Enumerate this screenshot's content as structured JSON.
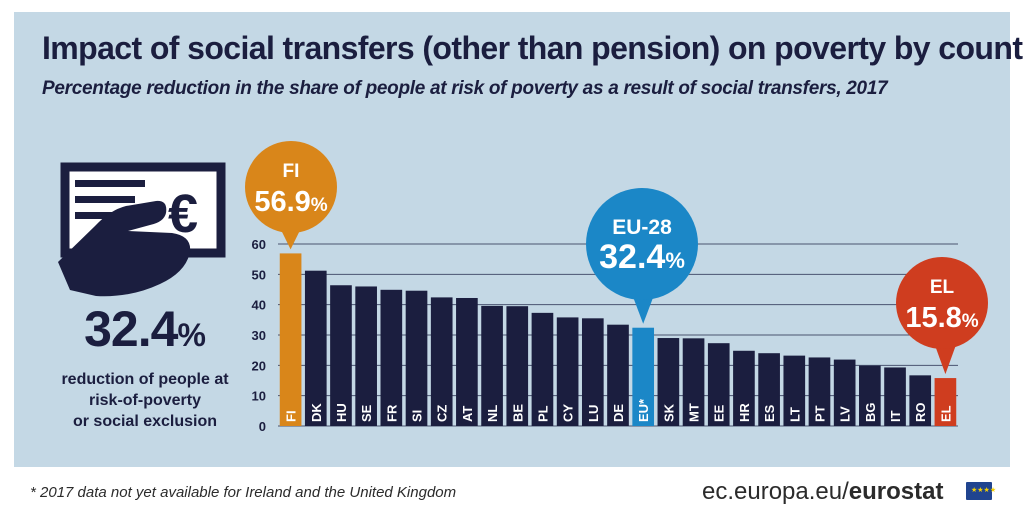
{
  "title": "Impact of social transfers (other than pension) on poverty by country",
  "subtitle": "Percentage reduction in the share of people at risk of poverty as a result of social transfers, 2017",
  "headline": {
    "value": "32.4",
    "unit": "%",
    "label_lines": [
      "reduction of people at",
      "risk-of-poverty",
      "or social exclusion"
    ]
  },
  "callouts": [
    {
      "name": "FI",
      "value": "56.9",
      "unit": "%",
      "color": "#d9861a"
    },
    {
      "name": "EU-28",
      "value": "32.4",
      "unit": "%",
      "color": "#1b87c7"
    },
    {
      "name": "EL",
      "value": "15.8",
      "unit": "%",
      "color": "#cf3d1f"
    }
  ],
  "footnote": "* 2017 data not yet available  for Ireland and the United Kingdom",
  "source": {
    "prefix": "ec.europa.eu/",
    "brand": "eurostat"
  },
  "icon_names": [
    "cheque-hand-euro-icon",
    "eu-flag-icon"
  ],
  "colors": {
    "panel": "#c4d8e5",
    "bar": "#1b1e3f",
    "fi": "#d9861a",
    "eu": "#1b87c7",
    "el": "#cf3d1f",
    "text": "#1b1e3f"
  },
  "chart_data": {
    "type": "bar",
    "title": "Impact of social transfers (other than pension) on poverty by country",
    "subtitle": "Percentage reduction in the share of people at risk of poverty as a result of social transfers, 2017",
    "categories": [
      "FI",
      "DK",
      "HU",
      "SE",
      "FR",
      "SI",
      "CZ",
      "AT",
      "NL",
      "BE",
      "PL",
      "CY",
      "LU",
      "DE",
      "EU*",
      "SK",
      "MT",
      "EE",
      "HR",
      "ES",
      "LT",
      "PT",
      "LV",
      "BG",
      "IT",
      "RO",
      "EL"
    ],
    "values": [
      56.9,
      51.2,
      46.4,
      46.0,
      44.9,
      44.6,
      42.4,
      42.2,
      39.6,
      39.5,
      37.3,
      35.8,
      35.5,
      33.4,
      32.4,
      29.0,
      28.9,
      27.3,
      24.8,
      24.0,
      23.2,
      22.6,
      21.9,
      19.9,
      19.3,
      16.7,
      15.8
    ],
    "highlight": {
      "FI": "#d9861a",
      "EU*": "#1b87c7",
      "EL": "#cf3d1f"
    },
    "y_ticks": [
      0,
      10,
      20,
      30,
      40,
      50,
      60
    ],
    "ylim": [
      0,
      60
    ],
    "grid": true,
    "legend": "none"
  }
}
